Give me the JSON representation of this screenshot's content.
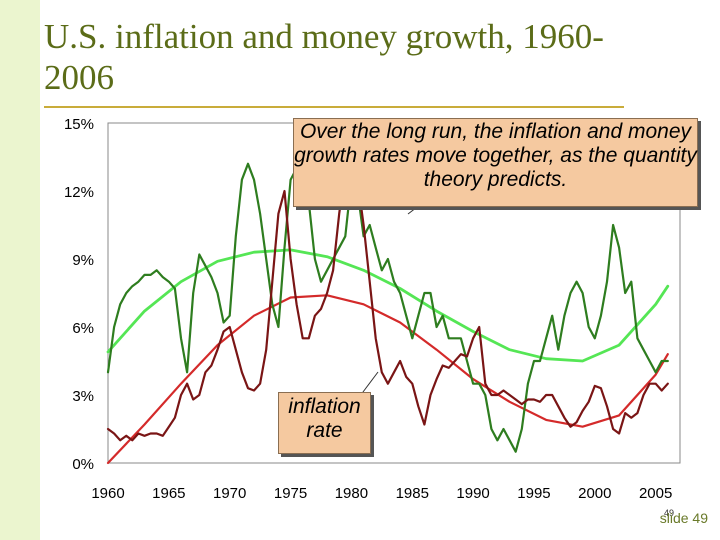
{
  "title": "U.S. inflation and money growth, 1960-2006",
  "colors": {
    "money_growth": "#2e7d1f",
    "inflation": "#7a1515",
    "money_trend": "#55e655",
    "inflation_trend": "#d42a2a",
    "band": "#ebf5cf"
  },
  "callouts": {
    "main": "Over the long run, the inflation and money growth rates move together, as the quantity theory predicts.",
    "inflation": "inflation rate"
  },
  "slide_label": "slide 49",
  "page_number": "49",
  "chart_data": {
    "type": "line",
    "title": "U.S. inflation and money growth, 1960-2006",
    "xlim": [
      1960,
      2007
    ],
    "ylim": [
      0,
      15
    ],
    "x_ticks": [
      1960,
      1965,
      1970,
      1975,
      1980,
      1985,
      1990,
      1995,
      2000,
      2005
    ],
    "x_tick_labels": [
      "1960",
      "1965",
      "1970",
      "1975",
      "1980",
      "1985",
      "1990",
      "1995",
      "2000",
      "2005"
    ],
    "y_ticks": [
      0,
      3,
      6,
      9,
      12,
      15
    ],
    "y_tick_labels": [
      "0%",
      "3%",
      "6%",
      "9%",
      "12%",
      "15%"
    ],
    "grid": false,
    "series": [
      {
        "key": "money_growth",
        "x": [
          1960,
          1960.5,
          1961,
          1961.5,
          1962,
          1962.5,
          1963,
          1963.5,
          1964,
          1964.5,
          1965,
          1965.5,
          1966,
          1966.5,
          1967,
          1967.5,
          1968,
          1968.5,
          1969,
          1969.5,
          1970,
          1970.5,
          1971,
          1971.5,
          1972,
          1972.5,
          1973,
          1973.5,
          1974,
          1974.5,
          1975,
          1975.5,
          1976,
          1976.5,
          1977,
          1977.5,
          1978,
          1978.5,
          1979,
          1979.5,
          1980,
          1980.5,
          1981,
          1981.5,
          1982,
          1982.5,
          1983,
          1983.5,
          1984,
          1984.5,
          1985,
          1985.5,
          1986,
          1986.5,
          1987,
          1987.5,
          1988,
          1988.5,
          1989,
          1989.5,
          1990,
          1990.5,
          1991,
          1991.5,
          1992,
          1992.5,
          1993,
          1993.5,
          1994,
          1994.5,
          1995,
          1995.5,
          1996,
          1996.5,
          1997,
          1997.5,
          1998,
          1998.5,
          1999,
          1999.5,
          2000,
          2000.5,
          2001,
          2001.5,
          2002,
          2002.5,
          2003,
          2003.5,
          2004,
          2004.5,
          2005,
          2005.5,
          2006
        ],
        "y": [
          4.0,
          6.0,
          7.0,
          7.5,
          7.8,
          8.0,
          8.3,
          8.3,
          8.5,
          8.2,
          8.0,
          7.7,
          5.5,
          4.0,
          7.5,
          9.2,
          8.7,
          8.2,
          7.5,
          6.2,
          6.5,
          10.0,
          12.5,
          13.2,
          12.5,
          11.0,
          9.0,
          7.0,
          6.0,
          9.5,
          12.5,
          13.0,
          12.0,
          11.5,
          9.0,
          8.0,
          8.5,
          9.0,
          9.5,
          10.0,
          12.5,
          12.0,
          10.0,
          10.5,
          9.5,
          8.5,
          9.0,
          8.0,
          7.5,
          6.5,
          5.5,
          6.5,
          7.5,
          7.5,
          6.0,
          6.5,
          5.5,
          5.5,
          5.5,
          4.5,
          3.5,
          3.5,
          3.0,
          1.5,
          1.0,
          1.5,
          1.0,
          0.5,
          1.5,
          3.5,
          4.5,
          4.5,
          5.5,
          6.5,
          5.0,
          6.5,
          7.5,
          8.0,
          7.5,
          6.0,
          5.5,
          6.5,
          8.0,
          10.5,
          9.5,
          7.5,
          8.0,
          5.5,
          5.0,
          4.5,
          4.0,
          4.5,
          4.5
        ]
      },
      {
        "key": "inflation",
        "x": [
          1960,
          1960.5,
          1961,
          1961.5,
          1962,
          1962.5,
          1963,
          1963.5,
          1964,
          1964.5,
          1965,
          1965.5,
          1966,
          1966.5,
          1967,
          1967.5,
          1968,
          1968.5,
          1969,
          1969.5,
          1970,
          1970.5,
          1971,
          1971.5,
          1972,
          1972.5,
          1973,
          1973.5,
          1974,
          1974.5,
          1975,
          1975.5,
          1976,
          1976.5,
          1977,
          1977.5,
          1978,
          1978.5,
          1979,
          1979.5,
          1980,
          1980.5,
          1981,
          1981.5,
          1982,
          1982.5,
          1983,
          1983.5,
          1984,
          1984.5,
          1985,
          1985.5,
          1986,
          1986.5,
          1987,
          1987.5,
          1988,
          1988.5,
          1989,
          1989.5,
          1990,
          1990.5,
          1991,
          1991.5,
          1992,
          1992.5,
          1993,
          1993.5,
          1994,
          1994.5,
          1995,
          1995.5,
          1996,
          1996.5,
          1997,
          1997.5,
          1998,
          1998.5,
          1999,
          1999.5,
          2000,
          2000.5,
          2001,
          2001.5,
          2002,
          2002.5,
          2003,
          2003.5,
          2004,
          2004.5,
          2005,
          2005.5,
          2006
        ],
        "y": [
          1.5,
          1.3,
          1.0,
          1.2,
          1.0,
          1.3,
          1.2,
          1.3,
          1.3,
          1.2,
          1.6,
          2.0,
          3.0,
          3.5,
          2.8,
          3.0,
          4.0,
          4.3,
          5.0,
          5.8,
          6.0,
          5.0,
          4.0,
          3.3,
          3.2,
          3.5,
          5.0,
          8.0,
          11.0,
          12.0,
          9.0,
          7.0,
          5.5,
          5.5,
          6.5,
          6.8,
          7.5,
          8.5,
          11.0,
          13.0,
          14.0,
          12.5,
          10.5,
          8.0,
          5.5,
          4.0,
          3.5,
          4.0,
          4.5,
          3.8,
          3.5,
          2.5,
          1.7,
          3.0,
          3.7,
          4.3,
          4.2,
          4.5,
          4.8,
          4.7,
          5.5,
          6.0,
          3.5,
          3.0,
          3.0,
          3.2,
          3.0,
          2.8,
          2.6,
          2.8,
          2.8,
          2.7,
          3.0,
          3.0,
          2.5,
          2.0,
          1.6,
          1.8,
          2.3,
          2.7,
          3.4,
          3.3,
          2.5,
          1.5,
          1.3,
          2.2,
          2.0,
          2.2,
          3.0,
          3.5,
          3.5,
          3.2,
          3.5
        ]
      },
      {
        "key": "money_trend",
        "x": [
          1960,
          1963,
          1966,
          1969,
          1972,
          1975,
          1978,
          1981,
          1984,
          1987,
          1990,
          1993,
          1996,
          1999,
          2002,
          2005,
          2006
        ],
        "y": [
          4.9,
          6.7,
          8.0,
          8.9,
          9.3,
          9.4,
          9.1,
          8.5,
          7.7,
          6.7,
          5.8,
          5.0,
          4.6,
          4.5,
          5.2,
          7.0,
          7.8
        ]
      },
      {
        "key": "inflation_trend",
        "x": [
          1960,
          1963,
          1966,
          1969,
          1972,
          1975,
          1978,
          1981,
          1984,
          1987,
          1990,
          1993,
          1996,
          1999,
          2002,
          2005,
          2006
        ],
        "y": [
          0.0,
          1.7,
          3.5,
          5.2,
          6.5,
          7.3,
          7.4,
          7.0,
          6.2,
          5.0,
          3.7,
          2.7,
          1.9,
          1.6,
          2.1,
          3.9,
          4.8
        ]
      }
    ]
  }
}
